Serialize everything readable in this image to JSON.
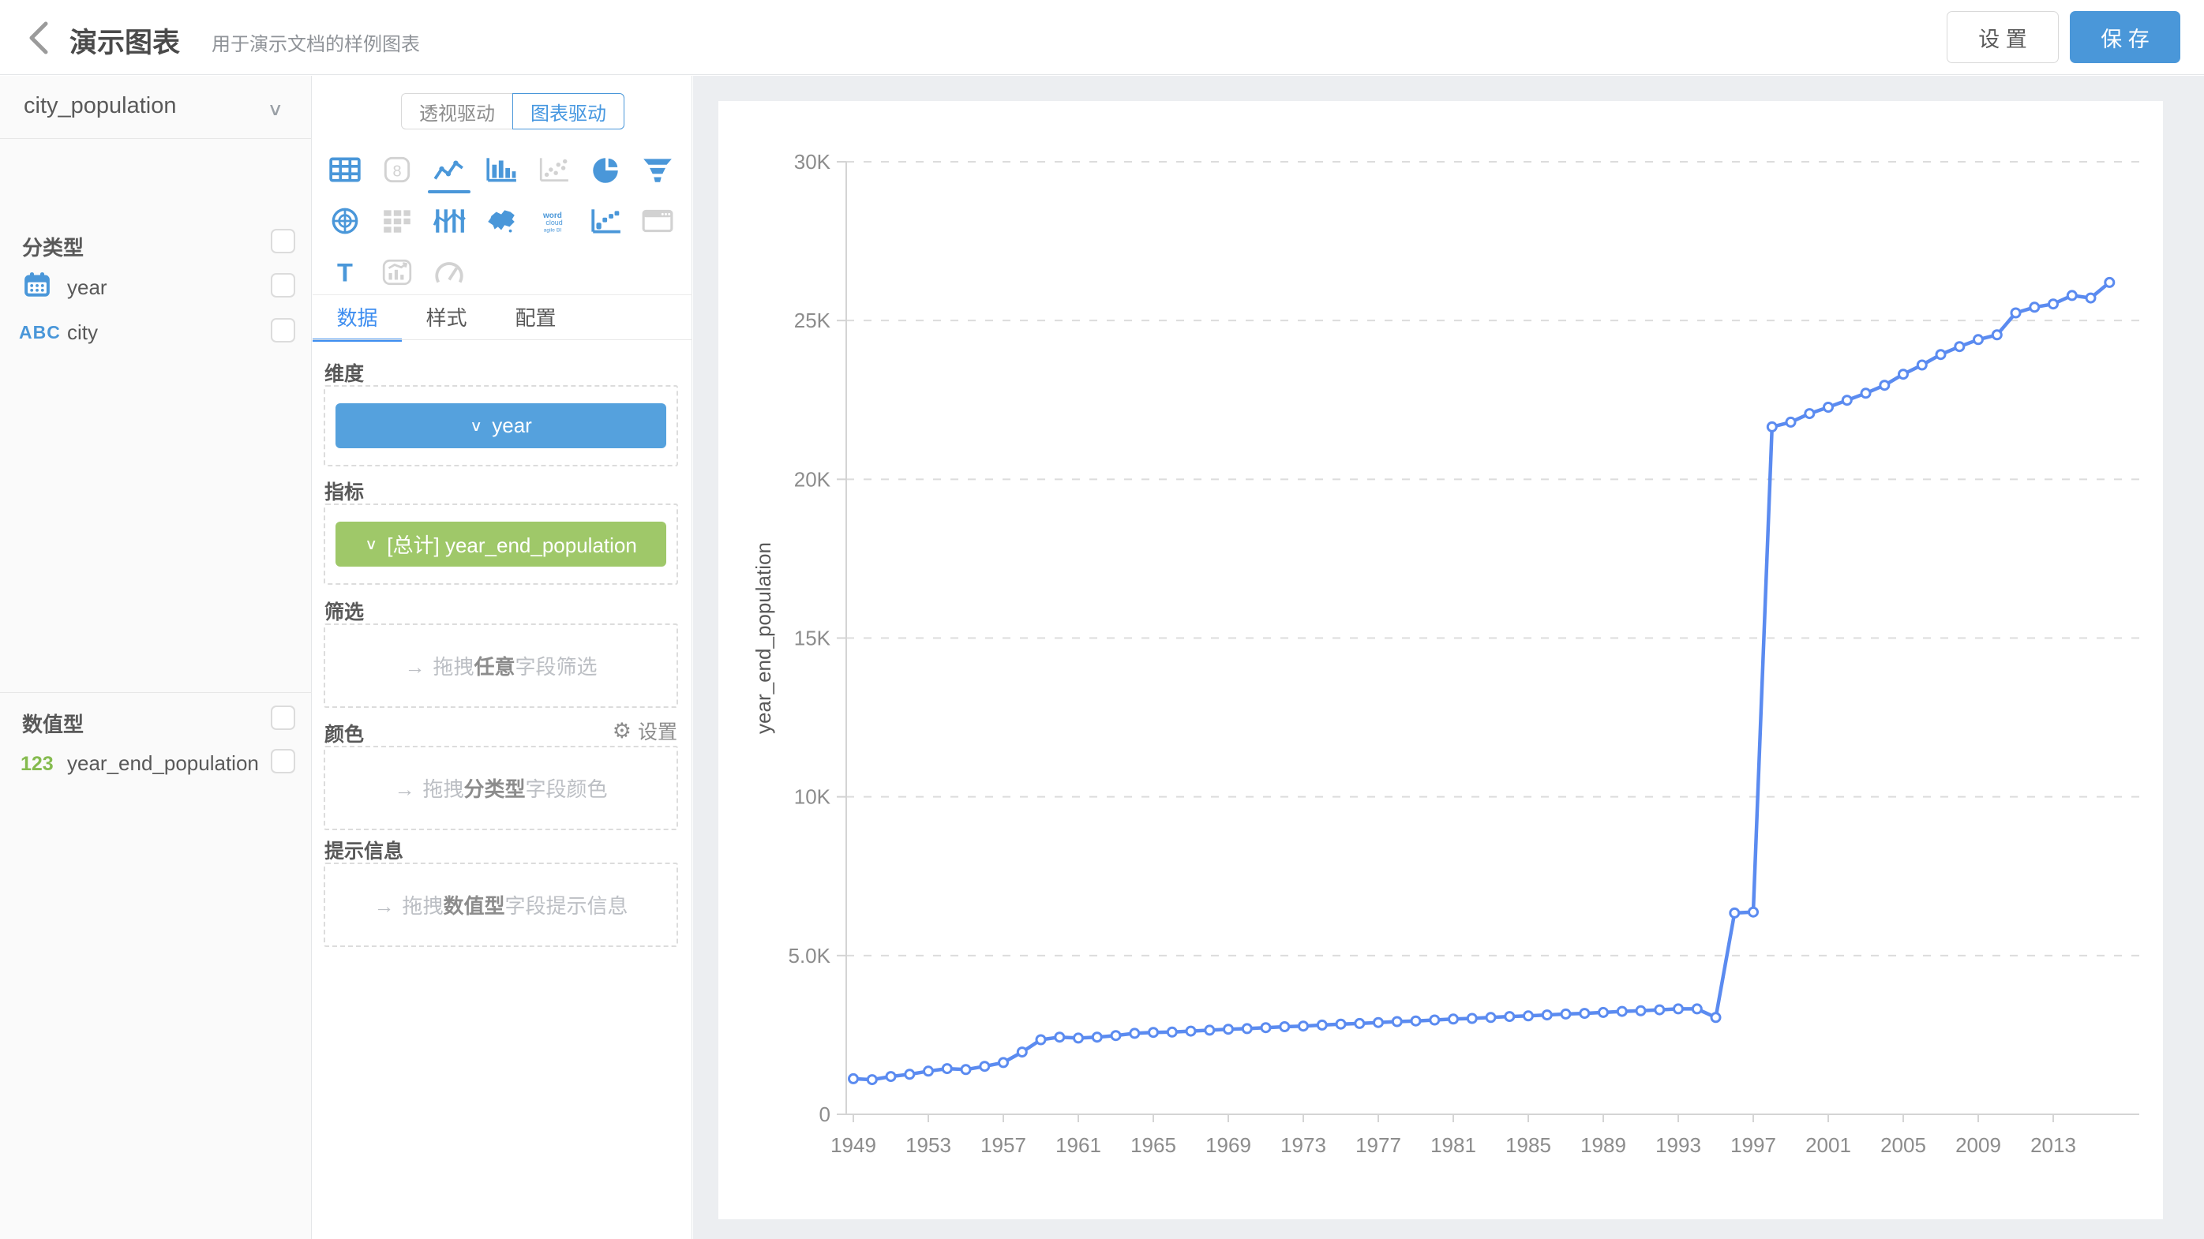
{
  "header": {
    "title": "演示图表",
    "subtitle": "用于演示文档的样例图表",
    "settings_label": "设 置",
    "save_label": "保 存"
  },
  "sidebar": {
    "dataset_selector": {
      "value": "city_population"
    },
    "sections": [
      {
        "label": "分类型",
        "fields": [
          {
            "icon": "calendar-icon",
            "name": "year"
          },
          {
            "icon": "abc-icon",
            "icon_text": "ABC",
            "name": "city"
          }
        ]
      },
      {
        "label": "数值型",
        "fields": [
          {
            "icon": "number-icon",
            "icon_text": "123",
            "name": "year_end_population"
          }
        ]
      }
    ]
  },
  "panel": {
    "mode_toggle": {
      "options": [
        "透视驱动",
        "图表驱动"
      ],
      "selected": "图表驱动"
    },
    "chart_types": [
      [
        {
          "name": "table",
          "state": "active"
        },
        {
          "name": "indicator",
          "state": "inactive"
        },
        {
          "name": "line",
          "state": "selected"
        },
        {
          "name": "bar",
          "state": "active"
        },
        {
          "name": "scatter",
          "state": "inactive"
        },
        {
          "name": "pie",
          "state": "active"
        },
        {
          "name": "funnel",
          "state": "active"
        }
      ],
      [
        {
          "name": "radar",
          "state": "active"
        },
        {
          "name": "crosstab",
          "state": "inactive"
        },
        {
          "name": "parallel",
          "state": "active"
        },
        {
          "name": "china-map",
          "state": "active"
        },
        {
          "name": "word-cloud",
          "state": "active"
        },
        {
          "name": "distribution",
          "state": "active"
        },
        {
          "name": "iframe",
          "state": "inactive"
        }
      ],
      [
        {
          "name": "text",
          "state": "active"
        },
        {
          "name": "combo",
          "state": "inactive"
        },
        {
          "name": "gauge",
          "state": "inactive"
        }
      ]
    ],
    "tabs": [
      {
        "label": "数据",
        "active": true
      },
      {
        "label": "样式",
        "active": false
      },
      {
        "label": "配置",
        "active": false
      }
    ],
    "sections": {
      "dimension": {
        "label": "维度",
        "pill_chevron": "∨",
        "pill_text": "year"
      },
      "measure": {
        "label": "指标",
        "pill_chevron": "∨",
        "pill_text": "[总计] year_end_population"
      },
      "filter": {
        "label": "筛选",
        "hint_arrow": "→",
        "hint_pre": "拖拽",
        "hint_bold": "任意",
        "hint_post": "字段筛选"
      },
      "color": {
        "label": "颜色",
        "settings_label": "设置",
        "hint_arrow": "→",
        "hint_pre": "拖拽",
        "hint_bold": "分类型",
        "hint_post": "字段颜色"
      },
      "tooltip": {
        "label": "提示信息",
        "hint_arrow": "→",
        "hint_pre": "拖拽",
        "hint_bold": "数值型",
        "hint_post": "字段提示信息"
      }
    }
  },
  "colors": {
    "accent_blue": "#4a97d9",
    "tab_blue": "#3e8ef0",
    "pill_blue": "#55a1dd",
    "pill_green": "#9fc869",
    "line_blue": "#5b8bf0",
    "icon_inactive": "#d2d2d2",
    "axis_text": "#8c8c8c"
  },
  "chart_data": {
    "type": "line",
    "title": "",
    "xlabel": "",
    "ylabel": "year_end_population",
    "ylim": [
      0,
      30000
    ],
    "grid": "dashed-horizontal",
    "legend": "none",
    "marker": "open-circle",
    "line_color": "#5b8bf0",
    "yticks": [
      {
        "v": 0,
        "label": "0"
      },
      {
        "v": 5000,
        "label": "5.0K"
      },
      {
        "v": 10000,
        "label": "10K"
      },
      {
        "v": 15000,
        "label": "15K"
      },
      {
        "v": 20000,
        "label": "20K"
      },
      {
        "v": 25000,
        "label": "25K"
      },
      {
        "v": 30000,
        "label": "30K"
      }
    ],
    "xticks": [
      1949,
      1953,
      1957,
      1961,
      1965,
      1969,
      1973,
      1977,
      1981,
      1985,
      1989,
      1993,
      1997,
      2001,
      2005,
      2009,
      2013
    ],
    "x": [
      1949,
      1950,
      1951,
      1952,
      1953,
      1954,
      1955,
      1956,
      1957,
      1958,
      1959,
      1960,
      1961,
      1962,
      1963,
      1964,
      1965,
      1966,
      1967,
      1968,
      1969,
      1970,
      1971,
      1972,
      1973,
      1974,
      1975,
      1976,
      1977,
      1978,
      1979,
      1980,
      1981,
      1982,
      1983,
      1984,
      1985,
      1986,
      1987,
      1988,
      1989,
      1990,
      1991,
      1992,
      1993,
      1994,
      1995,
      1996,
      1997,
      1998,
      1999,
      2000,
      2001,
      2002,
      2003,
      2004,
      2005,
      2006,
      2007,
      2008,
      2009,
      2010,
      2011,
      2012,
      2013,
      2014,
      2015,
      2016
    ],
    "series": [
      {
        "name": "year_end_population",
        "values": [
          1120,
          1090,
          1190,
          1260,
          1360,
          1440,
          1410,
          1510,
          1630,
          1960,
          2350,
          2430,
          2400,
          2430,
          2480,
          2550,
          2580,
          2590,
          2620,
          2650,
          2680,
          2700,
          2730,
          2760,
          2780,
          2810,
          2840,
          2860,
          2890,
          2920,
          2940,
          2970,
          3000,
          3020,
          3050,
          3080,
          3100,
          3130,
          3160,
          3180,
          3210,
          3240,
          3260,
          3290,
          3320,
          3320,
          3050,
          6340,
          6370,
          21650,
          21800,
          22070,
          22270,
          22490,
          22710,
          22960,
          23310,
          23600,
          23930,
          24180,
          24400,
          24550,
          25240,
          25420,
          25520,
          25790,
          25710,
          26200
        ]
      }
    ]
  }
}
